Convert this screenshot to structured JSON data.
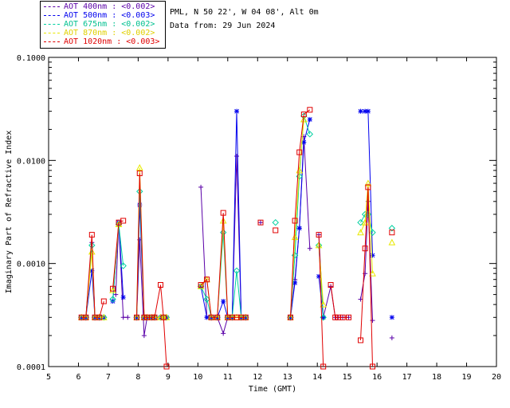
{
  "legend": {
    "items": [
      {
        "label": "AOT  400nm : <0.002>",
        "color": "#5a00a8"
      },
      {
        "label": "AOT  500nm : <0.003>",
        "color": "#0000ee"
      },
      {
        "label": "AOT  675nm : <0.002>",
        "color": "#00d0a0"
      },
      {
        "label": "AOT  870nm : <0.002>",
        "color": "#e8e800"
      },
      {
        "label": "AOT 1020nm : <0.003>",
        "color": "#e00000"
      }
    ]
  },
  "info": {
    "site": "PML, N 50 22', W 04 08', Alt 0m",
    "date": "Data from: 29 Jun 2024"
  },
  "chart_data": {
    "type": "line",
    "title": "",
    "xlabel": "Time (GMT)",
    "ylabel": "Imaginary Part of Refractive Index",
    "xlim": [
      5,
      20
    ],
    "ylim": [
      0.0001,
      0.1
    ],
    "yscale": "log",
    "xticks": [
      "5",
      "6",
      "7",
      "8",
      "9",
      "10",
      "11",
      "12",
      "13",
      "14",
      "15",
      "16",
      "17",
      "18",
      "19",
      "20"
    ],
    "yticks": [
      {
        "value": 0.1,
        "label": "0.1000"
      },
      {
        "value": 0.01,
        "label": "0.0100"
      },
      {
        "value": 0.001,
        "label": "0.0010"
      },
      {
        "value": 0.0001,
        "label": "0.0001"
      }
    ],
    "series": [
      {
        "name": "AOT 400nm",
        "color": "#5a00a8",
        "marker": "plus",
        "segments": [
          [
            [
              6.1,
              0.0003
            ],
            [
              6.25,
              0.0003
            ],
            [
              6.45,
              0.0016
            ],
            [
              6.55,
              0.0003
            ],
            [
              6.7,
              0.0003
            ],
            [
              6.85,
              0.0003
            ]
          ],
          [
            [
              7.25,
              0.0005
            ],
            [
              7.35,
              0.0025
            ],
            [
              7.5,
              0.0003
            ],
            [
              7.65,
              0.0003
            ]
          ],
          [
            [
              7.95,
              0.0003
            ],
            [
              8.05,
              0.0017
            ],
            [
              8.2,
              0.0002
            ],
            [
              8.3,
              0.0003
            ],
            [
              8.45,
              0.0003
            ],
            [
              8.55,
              0.0003
            ],
            [
              8.75,
              0.0003
            ],
            [
              8.85,
              0.0003
            ],
            [
              8.95,
              0.0003
            ]
          ],
          [
            [
              10.1,
              0.0055
            ],
            [
              10.3,
              0.0003
            ],
            [
              10.45,
              0.0003
            ],
            [
              10.65,
              0.0003
            ],
            [
              10.85,
              0.00021
            ],
            [
              11.0,
              0.0003
            ],
            [
              11.15,
              0.0003
            ],
            [
              11.3,
              0.011
            ],
            [
              11.45,
              0.0003
            ],
            [
              11.6,
              0.0003
            ]
          ],
          [
            [
              12.1,
              0.0025
            ]
          ],
          [
            [
              13.1,
              0.0003
            ],
            [
              13.25,
              0.0007
            ],
            [
              13.4,
              0.0022
            ],
            [
              13.55,
              0.017
            ],
            [
              13.75,
              0.0014
            ]
          ],
          [
            [
              14.05,
              0.0019
            ],
            [
              14.2,
              0.0003
            ],
            [
              14.45,
              0.0006
            ],
            [
              14.6,
              0.0003
            ],
            [
              14.7,
              0.0003
            ],
            [
              14.85,
              0.0003
            ],
            [
              15.05,
              0.0003
            ]
          ],
          [
            [
              15.45,
              0.00045
            ],
            [
              15.6,
              0.0008
            ],
            [
              15.7,
              0.004
            ],
            [
              15.85,
              0.00028
            ]
          ],
          [
            [
              16.5,
              0.00019
            ]
          ]
        ]
      },
      {
        "name": "AOT 500nm",
        "color": "#0000ee",
        "marker": "asterisk",
        "segments": [
          [
            [
              6.1,
              0.0003
            ],
            [
              6.25,
              0.0003
            ],
            [
              6.45,
              0.00085
            ],
            [
              6.55,
              0.0003
            ],
            [
              6.7,
              0.0003
            ],
            [
              6.85,
              0.0003
            ]
          ],
          [
            [
              7.15,
              0.00043
            ],
            [
              7.35,
              0.0025
            ],
            [
              7.5,
              0.00047
            ]
          ],
          [
            [
              7.95,
              0.0003
            ],
            [
              8.05,
              0.0037
            ],
            [
              8.2,
              0.0003
            ],
            [
              8.3,
              0.0003
            ],
            [
              8.45,
              0.0003
            ],
            [
              8.55,
              0.0003
            ],
            [
              8.75,
              0.0003
            ],
            [
              8.85,
              0.0003
            ],
            [
              8.95,
              0.0003
            ]
          ],
          [
            [
              10.1,
              0.0006
            ],
            [
              10.3,
              0.0003
            ],
            [
              10.45,
              0.0003
            ],
            [
              10.65,
              0.0003
            ],
            [
              10.85,
              0.00043
            ],
            [
              11.0,
              0.0003
            ],
            [
              11.15,
              0.0003
            ],
            [
              11.3,
              0.03
            ],
            [
              11.45,
              0.0003
            ],
            [
              11.6,
              0.0003
            ]
          ],
          [
            [
              13.1,
              0.0003
            ],
            [
              13.25,
              0.00065
            ],
            [
              13.4,
              0.0022
            ],
            [
              13.55,
              0.015
            ],
            [
              13.75,
              0.025
            ]
          ],
          [
            [
              14.05,
              0.00075
            ],
            [
              14.2,
              0.0003
            ]
          ],
          [
            [
              15.45,
              0.03
            ],
            [
              15.6,
              0.03
            ],
            [
              15.7,
              0.03
            ],
            [
              15.85,
              0.0012
            ]
          ],
          [
            [
              16.5,
              0.0003
            ]
          ]
        ]
      },
      {
        "name": "AOT 675nm",
        "color": "#00d0a0",
        "marker": "diamond",
        "segments": [
          [
            [
              6.1,
              0.0003
            ],
            [
              6.25,
              0.0003
            ],
            [
              6.45,
              0.0015
            ],
            [
              6.55,
              0.0003
            ],
            [
              6.7,
              0.0003
            ],
            [
              6.85,
              0.0003
            ]
          ],
          [
            [
              7.15,
              0.00045
            ],
            [
              7.35,
              0.0024
            ],
            [
              7.5,
              0.00095
            ]
          ],
          [
            [
              7.95,
              0.0003
            ],
            [
              8.05,
              0.005
            ],
            [
              8.2,
              0.0003
            ],
            [
              8.3,
              0.0003
            ],
            [
              8.45,
              0.0003
            ],
            [
              8.55,
              0.0003
            ],
            [
              8.75,
              0.0003
            ],
            [
              8.85,
              0.0003
            ],
            [
              8.95,
              0.0003
            ]
          ],
          [
            [
              10.1,
              0.0006
            ],
            [
              10.3,
              0.00045
            ],
            [
              10.45,
              0.0003
            ],
            [
              10.65,
              0.0003
            ],
            [
              10.85,
              0.002
            ],
            [
              11.0,
              0.0003
            ],
            [
              11.15,
              0.0003
            ],
            [
              11.3,
              0.00085
            ],
            [
              11.45,
              0.0003
            ],
            [
              11.6,
              0.0003
            ]
          ],
          [
            [
              12.6,
              0.0025
            ]
          ],
          [
            [
              13.1,
              0.0003
            ],
            [
              13.25,
              0.0012
            ],
            [
              13.4,
              0.007
            ],
            [
              13.55,
              0.027
            ],
            [
              13.75,
              0.018
            ]
          ],
          [
            [
              14.05,
              0.0015
            ],
            [
              14.2,
              0.0003
            ]
          ],
          [
            [
              15.45,
              0.0025
            ],
            [
              15.6,
              0.003
            ],
            [
              15.7,
              0.003
            ],
            [
              15.85,
              0.002
            ]
          ],
          [
            [
              16.5,
              0.0022
            ]
          ]
        ]
      },
      {
        "name": "AOT 870nm",
        "color": "#e8e800",
        "marker": "triangle",
        "segments": [
          [
            [
              6.1,
              0.0003
            ],
            [
              6.25,
              0.0003
            ],
            [
              6.45,
              0.0013
            ],
            [
              6.55,
              0.0003
            ],
            [
              6.7,
              0.0003
            ],
            [
              6.85,
              0.0003
            ]
          ],
          [
            [
              7.15,
              0.00055
            ],
            [
              7.35,
              0.0024
            ]
          ],
          [
            [
              7.95,
              0.0003
            ],
            [
              8.05,
              0.0085
            ],
            [
              8.2,
              0.0003
            ],
            [
              8.3,
              0.0003
            ],
            [
              8.45,
              0.0003
            ],
            [
              8.55,
              0.0003
            ],
            [
              8.75,
              0.0003
            ],
            [
              8.85,
              0.0003
            ],
            [
              8.95,
              0.0003
            ]
          ],
          [
            [
              10.1,
              0.0006
            ],
            [
              10.3,
              0.0007
            ],
            [
              10.45,
              0.0003
            ],
            [
              10.65,
              0.0003
            ],
            [
              10.85,
              0.0026
            ],
            [
              11.0,
              0.0003
            ],
            [
              11.15,
              0.0003
            ],
            [
              11.3,
              0.0003
            ],
            [
              11.45,
              0.0003
            ],
            [
              11.6,
              0.0003
            ]
          ],
          [
            [
              13.1,
              0.0003
            ],
            [
              13.25,
              0.0018
            ],
            [
              13.4,
              0.008
            ],
            [
              13.55,
              0.025
            ]
          ],
          [
            [
              14.05,
              0.0015
            ],
            [
              14.2,
              0.0004
            ]
          ],
          [
            [
              15.45,
              0.002
            ],
            [
              15.6,
              0.0025
            ],
            [
              15.7,
              0.006
            ],
            [
              15.85,
              0.0008
            ]
          ],
          [
            [
              16.5,
              0.0016
            ]
          ]
        ]
      },
      {
        "name": "AOT 1020nm",
        "color": "#e00000",
        "marker": "square",
        "segments": [
          [
            [
              6.1,
              0.0003
            ],
            [
              6.25,
              0.0003
            ],
            [
              6.45,
              0.0019
            ],
            [
              6.55,
              0.0003
            ],
            [
              6.7,
              0.0003
            ],
            [
              6.85,
              0.00043
            ]
          ],
          [
            [
              7.15,
              0.00057
            ],
            [
              7.35,
              0.0025
            ],
            [
              7.5,
              0.0026
            ]
          ],
          [
            [
              7.95,
              0.0003
            ],
            [
              8.05,
              0.0075
            ],
            [
              8.2,
              0.0003
            ],
            [
              8.3,
              0.0003
            ],
            [
              8.45,
              0.0003
            ],
            [
              8.55,
              0.0003
            ],
            [
              8.75,
              0.00062
            ],
            [
              8.85,
              0.0003
            ],
            [
              8.95,
              0.0001
            ]
          ],
          [
            [
              10.1,
              0.00062
            ],
            [
              10.3,
              0.0007
            ],
            [
              10.45,
              0.0003
            ],
            [
              10.65,
              0.0003
            ],
            [
              10.85,
              0.0031
            ],
            [
              11.0,
              0.0003
            ],
            [
              11.15,
              0.0003
            ],
            [
              11.3,
              0.0003
            ],
            [
              11.45,
              0.0003
            ],
            [
              11.6,
              0.0003
            ]
          ],
          [
            [
              12.1,
              0.0025
            ]
          ],
          [
            [
              12.6,
              0.0021
            ]
          ],
          [
            [
              13.1,
              0.0003
            ],
            [
              13.25,
              0.0026
            ],
            [
              13.4,
              0.012
            ],
            [
              13.55,
              0.028
            ],
            [
              13.75,
              0.031
            ]
          ],
          [
            [
              14.05,
              0.0019
            ],
            [
              14.2,
              0.0001
            ]
          ],
          [
            [
              14.45,
              0.00062
            ],
            [
              14.6,
              0.0003
            ],
            [
              14.7,
              0.0003
            ],
            [
              14.85,
              0.0003
            ],
            [
              15.05,
              0.0003
            ]
          ],
          [
            [
              15.45,
              0.00018
            ],
            [
              15.6,
              0.0014
            ],
            [
              15.7,
              0.0055
            ],
            [
              15.85,
              0.0001
            ]
          ],
          [
            [
              16.5,
              0.002
            ]
          ]
        ]
      }
    ]
  }
}
